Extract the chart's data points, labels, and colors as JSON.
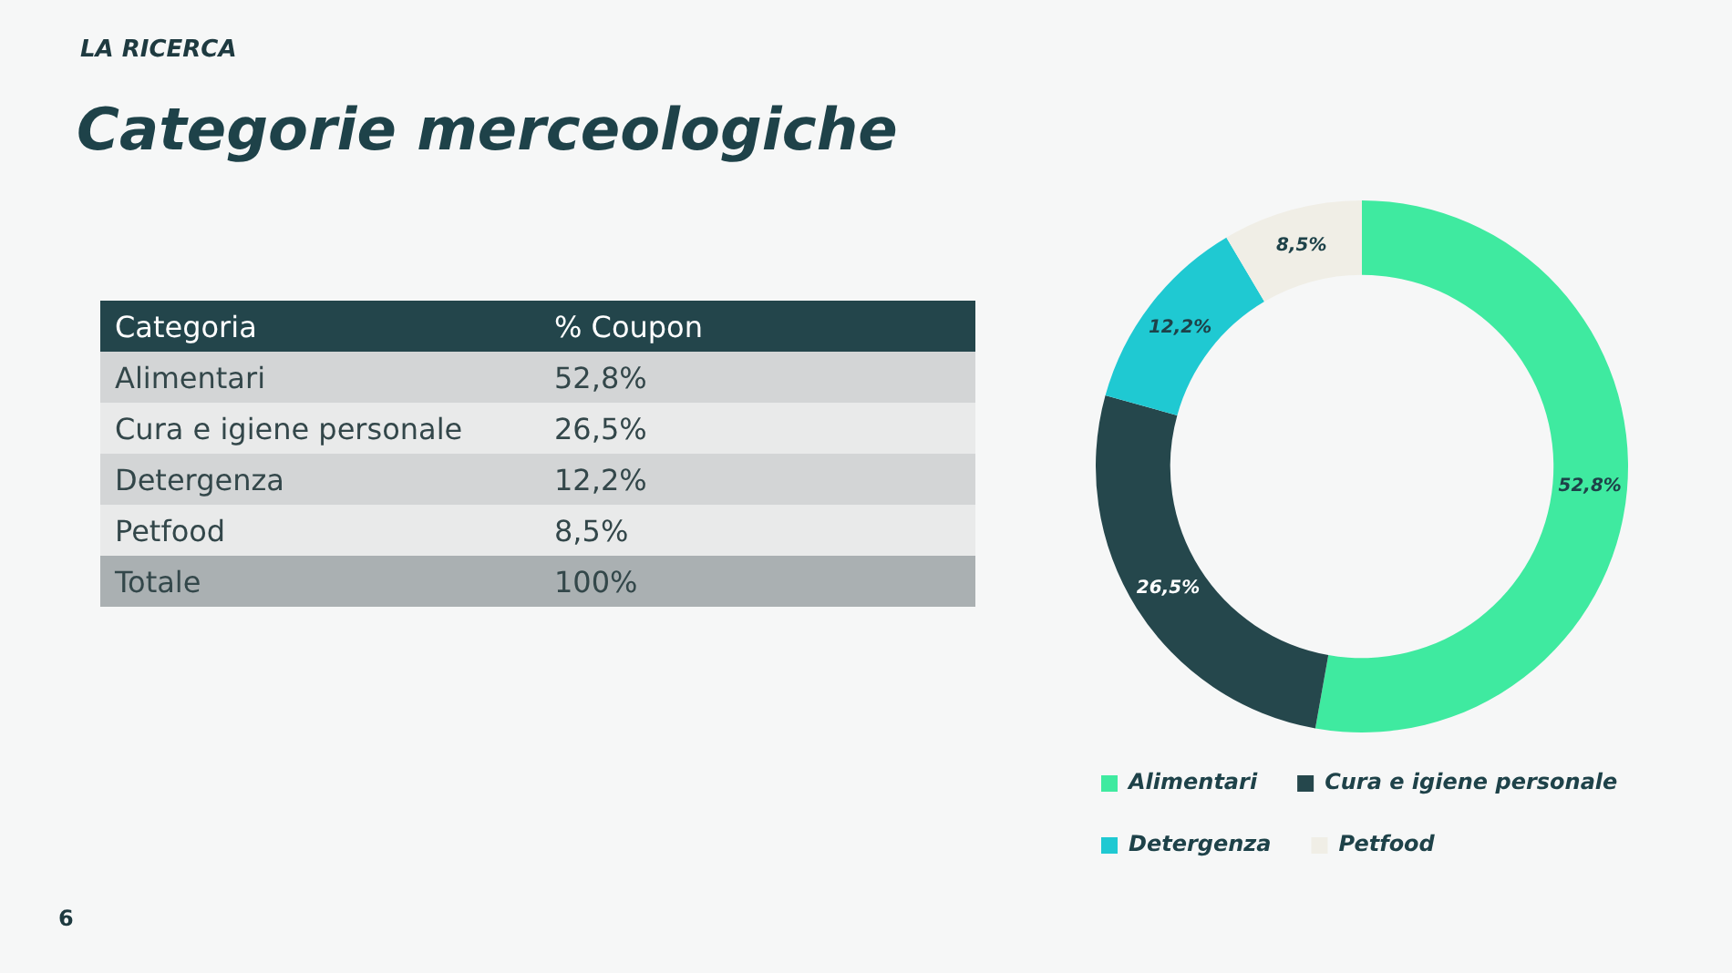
{
  "chart_data": {
    "type": "donut",
    "title": "Categorie merceologiche",
    "subtitle": "LA RICERCA",
    "categories": [
      "Alimentari",
      "Cura e igiene personale",
      "Detergenza",
      "Petfood"
    ],
    "values": [
      52.8,
      26.5,
      12.2,
      8.5
    ],
    "colors": [
      "#3feaa0",
      "#25474c",
      "#1fc9d2",
      "#f0eee6"
    ],
    "value_labels": [
      "52,8%",
      "26,5%",
      "12,2%",
      "8,5%"
    ],
    "legend": "bottom",
    "annotations": [
      "Categoria",
      "% Coupon",
      "Totale",
      "100%",
      "6"
    ]
  }
}
